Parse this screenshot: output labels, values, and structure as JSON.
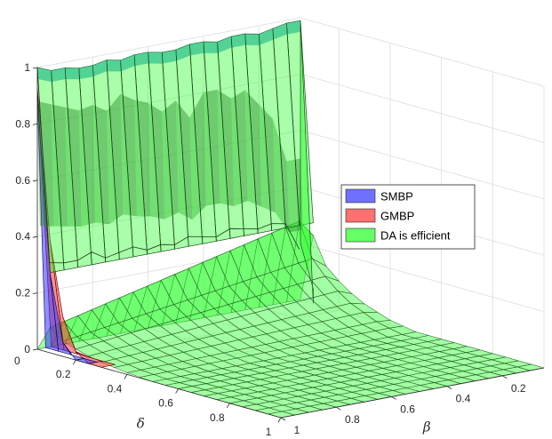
{
  "chart_data": {
    "type": "surface3d",
    "title": "",
    "xlabel": "δ",
    "ylabel": "β",
    "zlabel": "",
    "xlim": [
      0.05,
      1
    ],
    "ylim": [
      0.05,
      1
    ],
    "zlim": [
      0,
      1
    ],
    "x_ticks": [
      "0.2",
      "0.4",
      "0.6",
      "0.8",
      "1"
    ],
    "y_ticks": [
      "1",
      "0.8",
      "0.6",
      "0.4",
      "0.2"
    ],
    "z_ticks": [
      "0",
      "0.2",
      "0.4",
      "0.6",
      "0.8",
      "1"
    ],
    "z_ticks_secondary": [
      "0"
    ],
    "grid": true,
    "legend": {
      "position": "right",
      "entries": [
        {
          "name": "SMBP",
          "color": "#7070ff"
        },
        {
          "name": "GMBP",
          "color": "#ff7070"
        },
        {
          "name": "DA is efficient",
          "color": "#66ff66"
        }
      ]
    },
    "series": [
      {
        "name": "SMBP",
        "color": "#3333ff",
        "description_values": {
          "delta_at_beta_max": [
            0.05,
            0.1,
            0.15,
            0.2
          ],
          "z_at_beta_max": [
            0.9,
            0.28,
            0.05,
            0.0
          ]
        }
      },
      {
        "name": "GMBP",
        "color": "#ff3333",
        "description_values": {
          "delta_at_beta_max": [
            0.05,
            0.1,
            0.15,
            0.2,
            0.25
          ],
          "z_at_beta_max": [
            0.93,
            0.4,
            0.14,
            0.03,
            0.0
          ]
        }
      },
      {
        "name": "DA is efficient",
        "color": "#33ff33",
        "beta_ridge": [
          1.0,
          0.98,
          0.98,
          0.97,
          0.97,
          0.98,
          0.97,
          0.98,
          0.98,
          0.97,
          0.97,
          0.98,
          0.98,
          0.97,
          0.98,
          0.98,
          0.97,
          0.98,
          0.99
        ],
        "ridge_inner_band": [
          0.88,
          0.86,
          0.84,
          0.82,
          0.83,
          0.8,
          0.85,
          0.82,
          0.8,
          0.76,
          0.79,
          0.72,
          0.8,
          0.8,
          0.76,
          0.78,
          0.72,
          0.66,
          0.5
        ],
        "delta_profile_at_small_beta": [
          0.97,
          0.3,
          0.18,
          0.13,
          0.09,
          0.06,
          0.04,
          0.02,
          0.01,
          0.0
        ]
      }
    ]
  }
}
